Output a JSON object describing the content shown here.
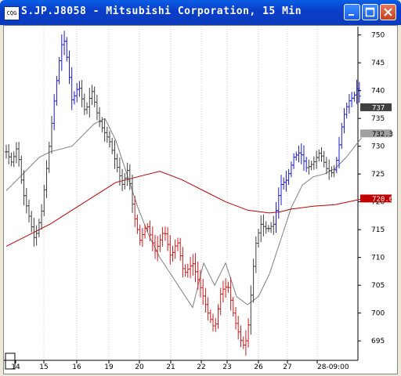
{
  "window": {
    "title": "S.JP.J8058 - Mitsubishi Corporation, 15 Min",
    "icon": "chart-app-icon"
  },
  "chart_data": {
    "type": "bar",
    "subtype": "ohlc",
    "title": "S.JP.J8058 - Mitsubishi Corporation, 15 Min",
    "x_tick_labels": [
      "14",
      "15",
      "16",
      "19",
      "20",
      "21",
      "22",
      "23",
      "26",
      "27",
      "28-09:00"
    ],
    "y_ticks": [
      695,
      700,
      705,
      710,
      715,
      720,
      725,
      730,
      735,
      740,
      745,
      750
    ],
    "ylim": [
      691.5,
      751.5
    ],
    "price_labels": [
      {
        "value": 737,
        "text": "737",
        "bg": "#404040",
        "fg": "#ffffff"
      },
      {
        "value": 732.3,
        "text": "732.3",
        "bg": "#a0a0a0",
        "fg": "#000000"
      },
      {
        "value": 720.6,
        "text": "720.6",
        "bg": "#c00000",
        "fg": "#ffffff"
      }
    ],
    "price_path": [
      [
        0,
        729
      ],
      [
        0.25,
        727
      ],
      [
        0.5,
        730
      ],
      [
        0.75,
        722
      ],
      [
        1.0,
        718
      ],
      [
        1.3,
        713
      ],
      [
        1.6,
        718
      ],
      [
        1.9,
        728
      ],
      [
        2.15,
        737
      ],
      [
        2.4,
        745
      ],
      [
        2.6,
        750
      ],
      [
        2.8,
        745
      ],
      [
        3.0,
        738
      ],
      [
        3.3,
        741
      ],
      [
        3.6,
        736
      ],
      [
        3.9,
        740
      ],
      [
        4.2,
        735
      ],
      [
        4.4,
        733
      ],
      [
        4.7,
        731
      ],
      [
        5.0,
        727
      ],
      [
        5.3,
        723
      ],
      [
        5.55,
        726
      ],
      [
        5.8,
        718
      ],
      [
        6.1,
        713
      ],
      [
        6.4,
        716
      ],
      [
        6.8,
        711
      ],
      [
        7.2,
        715
      ],
      [
        7.5,
        710
      ],
      [
        7.8,
        713
      ],
      [
        8.1,
        707
      ],
      [
        8.5,
        709
      ],
      [
        8.9,
        704
      ],
      [
        9.2,
        700
      ],
      [
        9.5,
        697
      ],
      [
        9.8,
        704
      ],
      [
        10.1,
        705
      ],
      [
        10.4,
        699
      ],
      [
        10.7,
        695
      ],
      [
        10.85,
        694
      ],
      [
        11.0,
        696
      ],
      [
        11.15,
        703
      ],
      [
        11.35,
        712
      ],
      [
        11.6,
        716
      ],
      [
        11.9,
        715
      ],
      [
        12.2,
        716
      ],
      [
        12.5,
        723
      ],
      [
        12.8,
        724
      ],
      [
        13.1,
        728
      ],
      [
        13.4,
        729
      ],
      [
        13.7,
        726
      ],
      [
        14.0,
        727
      ],
      [
        14.3,
        729
      ],
      [
        14.6,
        726
      ],
      [
        14.9,
        725
      ],
      [
        15.1,
        728
      ],
      [
        15.35,
        735
      ],
      [
        15.6,
        738
      ],
      [
        15.85,
        739
      ],
      [
        16.05,
        741
      ],
      [
        16.15,
        737
      ]
    ],
    "colored_segments": [
      {
        "from": 2.1,
        "to": 3.35,
        "color": "#1c1cd0"
      },
      {
        "from": 5.8,
        "to": 11.1,
        "color": "#d01c1c"
      },
      {
        "from": 12.2,
        "to": 13.7,
        "color": "#1c1cd0"
      },
      {
        "from": 15.0,
        "to": 16.2,
        "color": "#1c1cd0"
      }
    ],
    "series": [
      {
        "kind": "moving-average-fast",
        "color": "#808080",
        "values": [
          [
            0,
            722
          ],
          [
            0.5,
            724
          ],
          [
            1,
            726
          ],
          [
            1.5,
            728
          ],
          [
            2,
            729
          ],
          [
            3,
            730
          ],
          [
            4,
            734
          ],
          [
            4.5,
            735
          ],
          [
            5,
            731
          ],
          [
            5.5,
            725
          ],
          [
            6,
            719
          ],
          [
            6.5,
            714
          ],
          [
            7,
            710
          ],
          [
            7.5,
            707
          ],
          [
            8,
            704
          ],
          [
            8.5,
            701
          ],
          [
            9,
            709
          ],
          [
            9.5,
            705
          ],
          [
            10,
            709
          ],
          [
            10.5,
            703
          ],
          [
            11,
            701.5
          ],
          [
            11.5,
            703
          ],
          [
            12,
            707
          ],
          [
            12.5,
            713
          ],
          [
            13,
            719
          ],
          [
            13.5,
            723
          ],
          [
            14,
            724.5
          ],
          [
            14.5,
            725
          ],
          [
            15,
            726
          ],
          [
            15.5,
            728
          ],
          [
            16.2,
            731.5
          ]
        ]
      },
      {
        "kind": "moving-average-slow",
        "color": "#c00000",
        "values": [
          [
            0,
            712
          ],
          [
            1,
            714
          ],
          [
            2,
            716
          ],
          [
            3,
            718.5
          ],
          [
            4,
            721
          ],
          [
            5,
            723.5
          ],
          [
            6,
            724.5
          ],
          [
            7,
            725.5
          ],
          [
            8,
            724
          ],
          [
            9,
            722
          ],
          [
            10,
            720
          ],
          [
            11,
            718.5
          ],
          [
            12,
            718
          ],
          [
            12.5,
            718.2
          ],
          [
            13,
            718.7
          ],
          [
            14,
            719.2
          ],
          [
            15,
            719.5
          ],
          [
            16.2,
            720.5
          ]
        ]
      }
    ],
    "grid": {
      "vertical": true,
      "horizontal": false
    },
    "legend": "none"
  }
}
